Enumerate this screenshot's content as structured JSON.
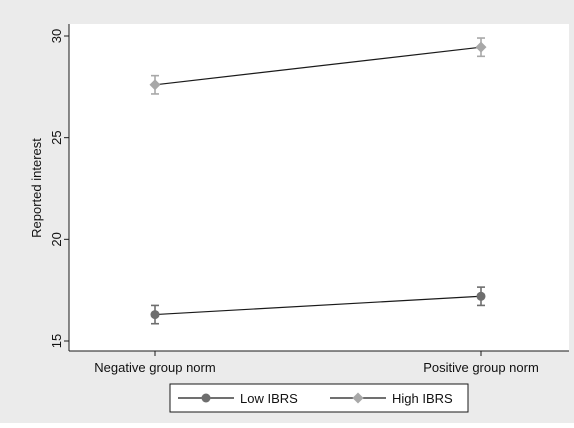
{
  "chart_data": {
    "type": "line",
    "title": "",
    "xlabel": "",
    "ylabel": "Reported interest",
    "categories": [
      "Negative group norm",
      "Positive group norm"
    ],
    "ylim": [
      15,
      30
    ],
    "yticks": [
      15,
      20,
      25,
      30
    ],
    "grid": false,
    "error_bars": true,
    "legend_position": "bottom",
    "series": [
      {
        "name": "Low IBRS",
        "marker": "circle",
        "color": "#6e6e6e",
        "values": [
          16.3,
          17.2
        ],
        "error_low": [
          15.85,
          16.75
        ],
        "error_high": [
          16.75,
          17.65
        ]
      },
      {
        "name": "High IBRS",
        "marker": "diamond",
        "color": "#a8a8a8",
        "values": [
          27.6,
          29.45
        ],
        "error_low": [
          27.15,
          29.0
        ],
        "error_high": [
          28.05,
          29.9
        ]
      }
    ],
    "colors": {
      "outer_background": "#ebebeb",
      "plot_background": "#ffffff",
      "line": "#1a1a1a"
    }
  }
}
